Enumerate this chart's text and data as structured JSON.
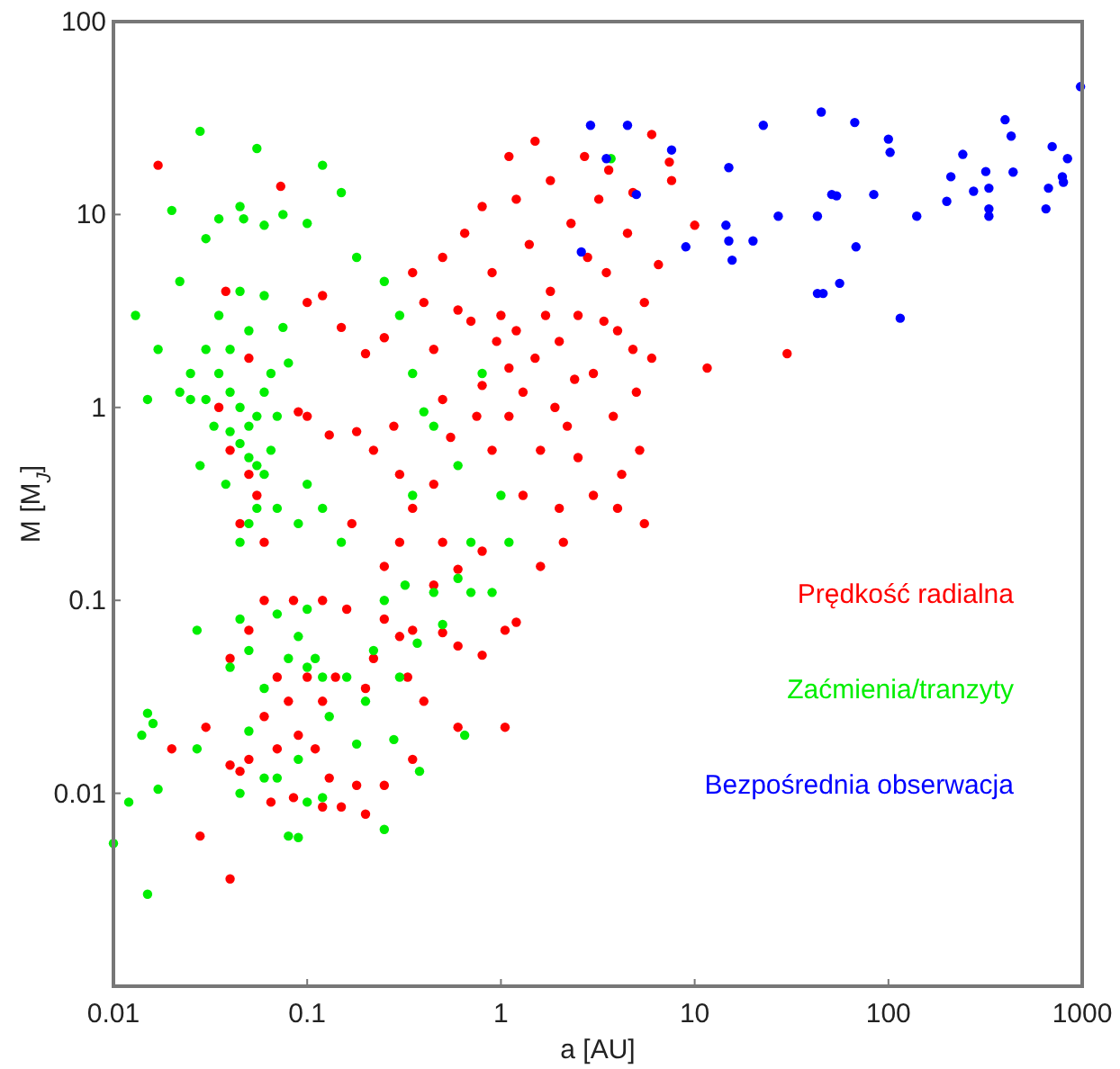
{
  "chart_data": {
    "type": "scatter",
    "xlabel": "a [AU]",
    "ylabel": "M [M$_{J}$]",
    "log": "xy",
    "xlim": [
      0.01,
      1000
    ],
    "ylim": [
      0.001,
      100
    ],
    "xticks": [
      0.01,
      0.1,
      1,
      10,
      100,
      1000
    ],
    "yticks": [
      {
        "value": 0.001,
        "label": null
      },
      0.01,
      0.1,
      1,
      10,
      100
    ],
    "grid": false,
    "legend": "right",
    "marker": "circle",
    "series": [
      {
        "name": "Prędkość radialna",
        "color": "#ff0000",
        "x": [
          1.2,
          1.5,
          2,
          1,
          1.3,
          1.8,
          2.5,
          3,
          1.1,
          1.6,
          2.2,
          0.9,
          1.4,
          2.3,
          3.5,
          4,
          5,
          0.8,
          0.7,
          1.2,
          1.8,
          2.7,
          1.5,
          1.1,
          3.2,
          4.5,
          5.5,
          6,
          5.2,
          4.2,
          3,
          2,
          1.3,
          0.9,
          0.75,
          2.5,
          3.8,
          4.8,
          2.8,
          1.9,
          1.7,
          1.1,
          0.95,
          3.4,
          2.4,
          0.6,
          0.55,
          0.5,
          0.45,
          0.4,
          0.65,
          0.5,
          0.8,
          0.35,
          2.1,
          1.6,
          4,
          5.5,
          3.6,
          4.8,
          6.5,
          10,
          11.6,
          30,
          6,
          7.4,
          7.6,
          0.12,
          0.1,
          0.15,
          0.2,
          0.25,
          0.28,
          0.18,
          0.13,
          0.1,
          0.09,
          0.22,
          0.3,
          0.35,
          0.17,
          0.45,
          0.5,
          0.6,
          0.25,
          0.45,
          0.8,
          0.3,
          0.038,
          0.05,
          0.04,
          0.055,
          0.05,
          0.045,
          0.06,
          0.035,
          0.04,
          0.05,
          0.06,
          0.07,
          0.08,
          0.1,
          0.12,
          0.09,
          0.11,
          0.05,
          0.06,
          0.07,
          0.045,
          0.085,
          0.12,
          0.15,
          0.2,
          0.18,
          0.25,
          0.22,
          0.16,
          0.25,
          0.3,
          0.35,
          0.4,
          0.5,
          0.6,
          0.8,
          1.05,
          1.2,
          1.05,
          0.6,
          0.35,
          0.2,
          0.14,
          0.13,
          0.065,
          0.04,
          0.33,
          0.03,
          0.02,
          0.028,
          0.04,
          0.017,
          0.073,
          0.085,
          0.12
        ],
        "values": [
          2.5,
          1.8,
          2.2,
          3,
          1.2,
          4,
          3,
          1.5,
          0.9,
          0.6,
          0.8,
          5,
          7,
          9,
          5,
          2.5,
          1.2,
          1.3,
          2.8,
          12,
          15,
          20,
          24,
          20,
          12,
          8,
          3.5,
          1.8,
          0.6,
          0.45,
          0.35,
          0.3,
          0.35,
          0.6,
          0.9,
          0.55,
          0.9,
          2,
          6,
          1,
          3,
          1.6,
          2.2,
          2.8,
          1.4,
          3.2,
          0.7,
          1.1,
          2,
          3.5,
          8,
          6,
          11,
          5,
          0.2,
          0.15,
          0.3,
          0.25,
          17,
          13,
          5.5,
          8.8,
          1.6,
          1.9,
          26,
          18.7,
          15,
          3.8,
          3.5,
          2.6,
          1.9,
          2.3,
          0.8,
          0.75,
          0.72,
          0.9,
          0.95,
          0.6,
          0.45,
          0.3,
          0.25,
          0.4,
          0.2,
          0.145,
          0.15,
          0.12,
          0.18,
          0.2,
          4,
          1.8,
          0.6,
          0.35,
          0.45,
          0.25,
          0.2,
          1,
          0.05,
          0.07,
          0.1,
          0.04,
          0.03,
          0.04,
          0.03,
          0.02,
          0.017,
          0.015,
          0.025,
          0.017,
          0.013,
          0.0095,
          0.0085,
          0.0085,
          0.0078,
          0.011,
          0.011,
          0.05,
          0.09,
          0.08,
          0.065,
          0.07,
          0.03,
          0.068,
          0.058,
          0.052,
          0.07,
          0.077,
          0.022,
          0.022,
          0.015,
          0.035,
          0.04,
          0.012,
          0.009,
          0.014,
          0.04,
          0.022,
          0.017,
          0.006,
          0.0036,
          18,
          14,
          0.1,
          0.1
        ]
      },
      {
        "name": "Zaćmienia/tranzyty",
        "color": "#00ee00",
        "x": [
          0.045,
          0.04,
          0.05,
          0.035,
          0.055,
          0.06,
          0.05,
          0.045,
          0.04,
          0.03,
          0.035,
          0.045,
          0.05,
          0.06,
          0.065,
          0.07,
          0.055,
          0.05,
          0.045,
          0.065,
          0.04,
          0.03,
          0.025,
          0.022,
          0.025,
          0.028,
          0.075,
          0.08,
          0.06,
          0.055,
          0.033,
          0.038,
          0.1,
          0.09,
          0.07,
          0.028,
          0.055,
          0.02,
          0.03,
          0.035,
          0.045,
          0.047,
          0.06,
          0.075,
          0.1,
          0.12,
          0.15,
          0.022,
          0.017,
          0.013,
          0.015,
          0.18,
          0.25,
          0.3,
          0.35,
          0.4,
          0.45,
          0.6,
          0.35,
          0.8,
          1,
          0.7,
          0.15,
          0.12,
          3.7,
          0.04,
          0.045,
          0.05,
          0.06,
          0.07,
          0.08,
          0.09,
          0.1,
          0.1,
          0.11,
          0.12,
          0.13,
          0.16,
          0.18,
          0.2,
          0.22,
          0.25,
          0.3,
          0.32,
          0.37,
          0.45,
          0.5,
          0.6,
          0.7,
          0.9,
          1.1,
          0.65,
          0.38,
          0.28,
          0.05,
          0.06,
          0.045,
          0.08,
          0.09,
          0.25,
          0.1,
          0.12,
          0.09,
          0.07,
          0.027,
          0.027,
          0.01,
          0.015,
          0.012,
          0.015,
          0.014,
          0.016,
          0.017
        ],
        "values": [
          1,
          1.2,
          0.8,
          1.5,
          0.5,
          0.45,
          0.55,
          0.65,
          2,
          2,
          3,
          4,
          2.5,
          3.8,
          1.5,
          0.9,
          0.3,
          0.25,
          0.2,
          0.6,
          0.75,
          1.1,
          1.1,
          1.2,
          1.5,
          0.5,
          2.6,
          1.7,
          1.2,
          0.9,
          0.8,
          0.4,
          0.4,
          0.25,
          0.3,
          27,
          22,
          10.5,
          7.5,
          9.5,
          11,
          9.5,
          8.8,
          10,
          9,
          18,
          13,
          4.5,
          2,
          3,
          1.1,
          6,
          4.5,
          3,
          1.5,
          0.95,
          0.8,
          0.5,
          0.35,
          1.5,
          0.35,
          0.2,
          0.2,
          0.3,
          19.5,
          0.045,
          0.08,
          0.055,
          0.035,
          0.085,
          0.05,
          0.065,
          0.09,
          0.045,
          0.05,
          0.04,
          0.025,
          0.04,
          0.018,
          0.03,
          0.055,
          0.1,
          0.04,
          0.12,
          0.06,
          0.11,
          0.075,
          0.13,
          0.11,
          0.11,
          0.2,
          0.02,
          0.013,
          0.019,
          0.021,
          0.012,
          0.01,
          0.006,
          0.0059,
          0.0065,
          0.009,
          0.0095,
          0.015,
          0.012,
          0.07,
          0.017,
          0.0055,
          0.003,
          0.009,
          0.026,
          0.02,
          0.023,
          0.0105
        ]
      },
      {
        "name": "Bezpośrednia obserwacja",
        "color": "#0000ff",
        "x": [
          2.9,
          4.5,
          3.5,
          7.6,
          5,
          2.6,
          9,
          15,
          14.5,
          15,
          15.6,
          20,
          22.6,
          27,
          43,
          45,
          51,
          54,
          68,
          67,
          43,
          46,
          56,
          84,
          100,
          102,
          115,
          140,
          200,
          210,
          242,
          275,
          318,
          330,
          330,
          330,
          400,
          430,
          440,
          650,
          670,
          700,
          790,
          800,
          840,
          980
        ],
        "values": [
          29,
          29,
          19.5,
          21.6,
          12.7,
          6.4,
          6.8,
          17.5,
          8.8,
          7.3,
          5.8,
          7.3,
          29,
          9.8,
          9.8,
          34,
          12.7,
          12.5,
          6.8,
          30,
          3.9,
          3.9,
          4.4,
          12.7,
          24.6,
          21,
          2.9,
          9.8,
          11.7,
          15.7,
          20.5,
          13.2,
          16.7,
          13.7,
          10.7,
          9.8,
          31,
          25.5,
          16.6,
          10.7,
          13.7,
          22.5,
          15.7,
          14.7,
          19.5,
          46
        ]
      }
    ]
  }
}
